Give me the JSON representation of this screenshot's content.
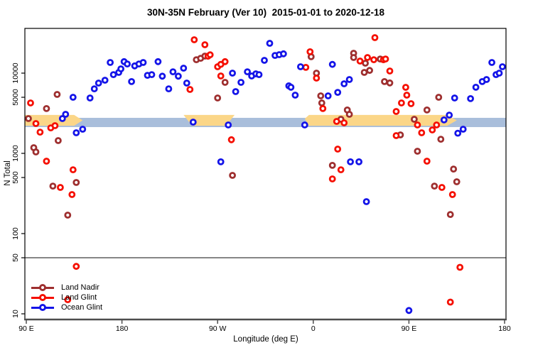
{
  "title": "30N-35N February (Ver 10)  2015-01-01 to 2020-12-18",
  "chart_data": {
    "type": "scatter",
    "title": "30N-35N February (Ver 10)  2015-01-01 to 2020-12-18",
    "xlabel": "Longitude (deg E)",
    "ylabel": "N Total",
    "x_axis": {
      "note": "extended longitude axis, 90E eastward through 180, 90W, 0, 90E to 180",
      "range_deg": [
        88.7,
        541.3
      ],
      "ticks": [
        {
          "deg": 90,
          "label": "90 E"
        },
        {
          "deg": 180,
          "label": "180"
        },
        {
          "deg": 270,
          "label": "90 W"
        },
        {
          "deg": 360,
          "label": "0"
        },
        {
          "deg": 450,
          "label": "90 E"
        },
        {
          "deg": 540,
          "label": "180"
        }
      ]
    },
    "y_axis": {
      "scale": "log10",
      "range": [
        8.5,
        36000
      ],
      "ticks": [
        {
          "v": 10000,
          "label": "10000"
        },
        {
          "v": 5000,
          "label": "5000"
        },
        {
          "v": 1000,
          "label": "1000"
        },
        {
          "v": 500,
          "label": "500"
        },
        {
          "v": 100,
          "label": "100"
        },
        {
          "v": 50,
          "label": "50"
        },
        {
          "v": 10,
          "label": "10"
        }
      ]
    },
    "reference_line_y": 50,
    "bands": {
      "blue_band": {
        "color": "#a9bedb",
        "deg": [
          88.7,
          541.3
        ],
        "n": [
          2125,
          2772
        ]
      },
      "yellow_band": {
        "color": "#fbd688",
        "segments": [
          [
            [
              88.7,
              3010
            ],
            [
              135,
              3010
            ],
            [
              143,
              2580
            ],
            [
              135,
              2210
            ],
            [
              88.7,
              2210
            ]
          ],
          [
            [
              238,
              3010
            ],
            [
              286,
              3010
            ],
            [
              278,
              2210
            ],
            [
              246,
              2210
            ]
          ],
          [
            [
              352,
              2700
            ],
            [
              356,
              3010
            ],
            [
              486,
              3010
            ],
            [
              495,
              2580
            ],
            [
              486,
              2210
            ],
            [
              356,
              2210
            ]
          ]
        ]
      }
    },
    "series": [
      {
        "name": "Land Nadir",
        "color": "#9e2f2f",
        "points": [
          [
            92,
            2715
          ],
          [
            109,
            3615
          ],
          [
            119,
            5430
          ],
          [
            120,
            1443
          ],
          [
            97,
            1178
          ],
          [
            99,
            1042
          ],
          [
            115,
            391
          ],
          [
            137,
            434
          ],
          [
            129,
            170
          ],
          [
            250,
            14700
          ],
          [
            254,
            15300
          ],
          [
            258,
            16300
          ],
          [
            270,
            4900
          ],
          [
            277,
            7680
          ],
          [
            284,
            532
          ],
          [
            358,
            16000
          ],
          [
            363,
            10000
          ],
          [
            367,
            5210
          ],
          [
            368,
            4250
          ],
          [
            378,
            708
          ],
          [
            386,
            2660
          ],
          [
            392,
            3470
          ],
          [
            394,
            3070
          ],
          [
            398,
            17700
          ],
          [
            398,
            15670
          ],
          [
            408,
            10200
          ],
          [
            409,
            13300
          ],
          [
            413,
            10800
          ],
          [
            423,
            15000
          ],
          [
            427,
            7850
          ],
          [
            432,
            7550
          ],
          [
            442,
            1700
          ],
          [
            455,
            2660
          ],
          [
            458,
            1064
          ],
          [
            467,
            3470
          ],
          [
            474,
            391
          ],
          [
            478,
            5000
          ],
          [
            480,
            1500
          ],
          [
            489,
            173
          ],
          [
            492,
            638
          ],
          [
            495,
            443
          ]
        ]
      },
      {
        "name": "Land Glint",
        "color": "#f50f00",
        "points": [
          [
            94,
            4250
          ],
          [
            99,
            2355
          ],
          [
            103,
            1840
          ],
          [
            109,
            800
          ],
          [
            113,
            2080
          ],
          [
            117,
            2215
          ],
          [
            122,
            376
          ],
          [
            129,
            15
          ],
          [
            133,
            307
          ],
          [
            134,
            625
          ],
          [
            137,
            39
          ],
          [
            244,
            6255
          ],
          [
            248,
            26050
          ],
          [
            258,
            22600
          ],
          [
            261,
            16230
          ],
          [
            263,
            16900
          ],
          [
            270,
            12020
          ],
          [
            273,
            12850
          ],
          [
            273,
            9220
          ],
          [
            277,
            13900
          ],
          [
            283,
            1480
          ],
          [
            353,
            11800
          ],
          [
            357,
            18450
          ],
          [
            363,
            8670
          ],
          [
            369,
            3615
          ],
          [
            378,
            480
          ],
          [
            382,
            2500
          ],
          [
            383,
            1130
          ],
          [
            386,
            625
          ],
          [
            389,
            2400
          ],
          [
            404,
            14130
          ],
          [
            411,
            15670
          ],
          [
            417,
            14700
          ],
          [
            418,
            27700
          ],
          [
            426,
            14700
          ],
          [
            428,
            15000
          ],
          [
            432,
            10640
          ],
          [
            438,
            1666
          ],
          [
            438,
            3325
          ],
          [
            443,
            4250
          ],
          [
            447,
            6650
          ],
          [
            448,
            5320
          ],
          [
            452,
            4160
          ],
          [
            458,
            2260
          ],
          [
            462,
            1807
          ],
          [
            467,
            800
          ],
          [
            472,
            1960
          ],
          [
            476,
            2260
          ],
          [
            481,
            376
          ],
          [
            489,
            14
          ],
          [
            491,
            307
          ],
          [
            498,
            38
          ]
        ]
      },
      {
        "name": "Ocean Glint",
        "color": "#1414e8",
        "points": [
          [
            124,
            2715
          ],
          [
            127,
            3070
          ],
          [
            134,
            5000
          ],
          [
            137,
            1807
          ],
          [
            143,
            2000
          ],
          [
            150,
            4900
          ],
          [
            154,
            6380
          ],
          [
            158,
            7520
          ],
          [
            164,
            8160
          ],
          [
            169,
            13580
          ],
          [
            172,
            9590
          ],
          [
            177,
            10200
          ],
          [
            179,
            11300
          ],
          [
            182,
            13900
          ],
          [
            185,
            13000
          ],
          [
            189,
            7850
          ],
          [
            192,
            12300
          ],
          [
            196,
            13000
          ],
          [
            200,
            13580
          ],
          [
            204,
            9380
          ],
          [
            208,
            9590
          ],
          [
            214,
            13900
          ],
          [
            218,
            9170
          ],
          [
            224,
            6380
          ],
          [
            228,
            10400
          ],
          [
            233,
            9170
          ],
          [
            238,
            11540
          ],
          [
            241,
            7520
          ],
          [
            247,
            2450
          ],
          [
            273,
            784
          ],
          [
            280,
            2260
          ],
          [
            284,
            10000
          ],
          [
            287,
            5890
          ],
          [
            292,
            7680
          ],
          [
            298,
            10400
          ],
          [
            302,
            9220
          ],
          [
            306,
            9800
          ],
          [
            309,
            9590
          ],
          [
            314,
            14430
          ],
          [
            319,
            23550
          ],
          [
            324,
            16600
          ],
          [
            328,
            17000
          ],
          [
            332,
            17400
          ],
          [
            337,
            6940
          ],
          [
            339,
            6660
          ],
          [
            343,
            5320
          ],
          [
            348,
            12020
          ],
          [
            352,
            2260
          ],
          [
            374,
            5210
          ],
          [
            378,
            12850
          ],
          [
            383,
            5760
          ],
          [
            389,
            7370
          ],
          [
            394,
            8330
          ],
          [
            395,
            784
          ],
          [
            403,
            784
          ],
          [
            410,
            250
          ],
          [
            450,
            11
          ],
          [
            483,
            2610
          ],
          [
            488,
            3000
          ],
          [
            493,
            4900
          ],
          [
            496,
            1785
          ],
          [
            501,
            2000
          ],
          [
            508,
            4810
          ],
          [
            513,
            6660
          ],
          [
            519,
            7850
          ],
          [
            523,
            8330
          ],
          [
            528,
            13580
          ],
          [
            532,
            9590
          ],
          [
            535,
            10000
          ],
          [
            538,
            12020
          ]
        ]
      }
    ],
    "legend_position": "bottom-left"
  },
  "legend": {
    "items": [
      {
        "label": "Land Nadir"
      },
      {
        "label": "Land Glint"
      },
      {
        "label": "Ocean Glint"
      }
    ]
  }
}
